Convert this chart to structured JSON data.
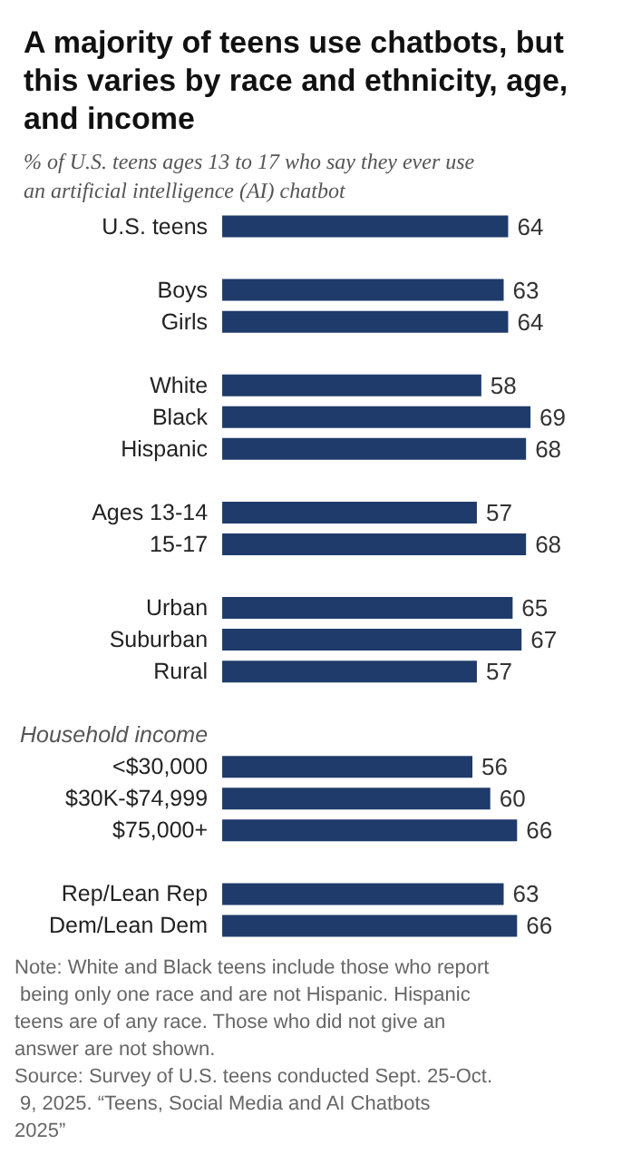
{
  "chart_data": {
    "type": "bar",
    "orientation": "horizontal",
    "title": "A majority of teens use chatbots, but this varies by race and ethnicity, age, and income",
    "subtitle": "% of U.S. teens ages 13 to 17 who say they ever use an artificial intelligence (AI) chatbot",
    "categories": [
      "U.S. teens",
      null,
      "Boys",
      "Girls",
      null,
      "White",
      "Black",
      "Hispanic",
      null,
      "Ages 13-14",
      "15-17",
      null,
      "Urban",
      "Suburban",
      "Rural",
      null,
      "Household income",
      "<$30,000",
      "$30K-$74,999",
      "$75,000+",
      null,
      "Rep/Lean Rep",
      "Dem/Lean Dem"
    ],
    "values": [
      64,
      null,
      63,
      64,
      null,
      58,
      69,
      68,
      null,
      57,
      68,
      null,
      65,
      67,
      57,
      null,
      null,
      56,
      60,
      66,
      null,
      63,
      66
    ],
    "color": "#1f3b6b",
    "data_labels": true,
    "grid": false,
    "annotations": [
      "Note: White and Black teens include those who report being only one race and are not Hispanic. Hispanic teens are of any race. Those who did not give an answer are not shown.",
      "Source: Survey of U.S. teens conducted Sept. 25-Oct. 9, 2025. “Teens, Social Media and AI Chatbots 2025”"
    ]
  }
}
